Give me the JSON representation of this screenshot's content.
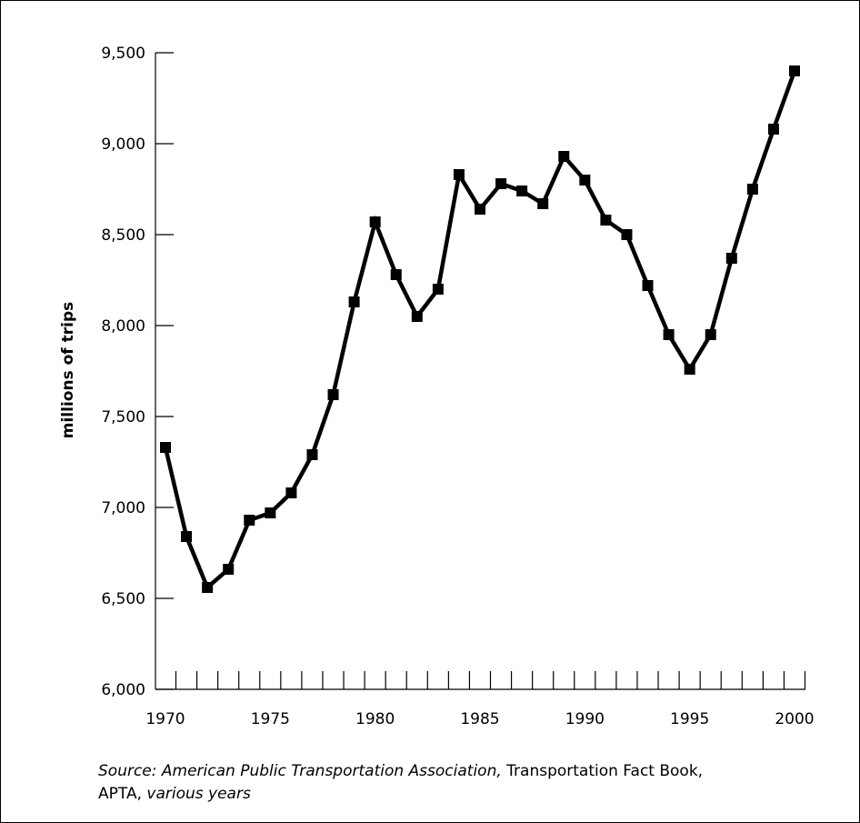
{
  "chart_data": {
    "type": "line",
    "ylabel": "millions of trips",
    "xlabel": "",
    "title": "",
    "x": [
      1970,
      1971,
      1972,
      1973,
      1974,
      1975,
      1976,
      1977,
      1978,
      1979,
      1980,
      1981,
      1982,
      1983,
      1984,
      1985,
      1986,
      1987,
      1988,
      1989,
      1990,
      1991,
      1992,
      1993,
      1994,
      1995,
      1996,
      1997,
      1998,
      1999,
      2000
    ],
    "series": [
      {
        "values": [
          7330,
          6840,
          6560,
          6660,
          6930,
          6970,
          7080,
          7290,
          7620,
          8130,
          8570,
          8280,
          8050,
          8200,
          8830,
          8640,
          8780,
          8740,
          8670,
          8930,
          8800,
          8580,
          8500,
          8220,
          7950,
          7760,
          7950,
          8370,
          8750,
          9080,
          9400
        ]
      }
    ],
    "xlim": [
      1970,
      2000
    ],
    "ylim": [
      6000,
      9500
    ],
    "x_ticks": [
      "1970",
      "1975",
      "1980",
      "1985",
      "1990",
      "1995",
      "2000"
    ],
    "y_ticks": [
      "6,000",
      "6,500",
      "7,000",
      "7,500",
      "8,000",
      "8,500",
      "9,000",
      "9,500"
    ],
    "marker": "square",
    "line_color": "#000000",
    "grid": false
  },
  "source": {
    "part1": "Source: American Public Transportation Association,",
    "part2": " Transportation Fact Book,",
    "part3": "APTA, ",
    "part4": "various years"
  }
}
